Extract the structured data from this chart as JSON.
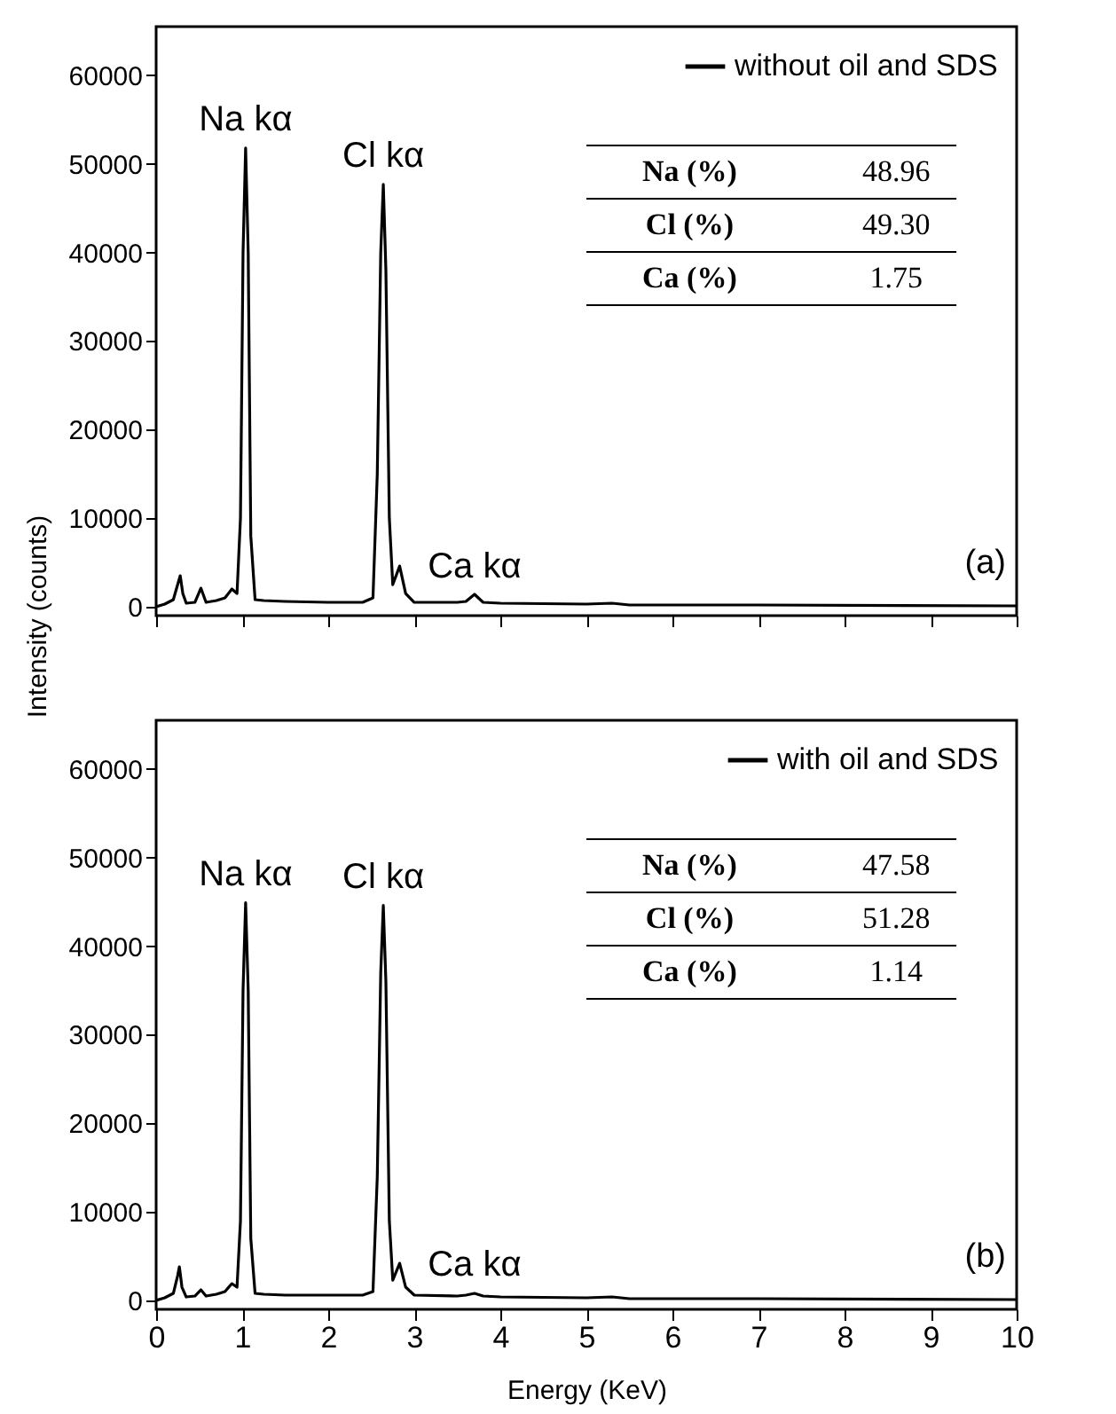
{
  "chart_data": [
    {
      "type": "line",
      "ylabel": "Intensity (counts)",
      "xlim": [
        0,
        10
      ],
      "ylim": [
        -1000,
        65500
      ],
      "xticks": [
        0,
        1,
        2,
        3,
        4,
        5,
        6,
        7,
        8,
        9,
        10
      ],
      "yticks": [
        0,
        10000,
        20000,
        30000,
        40000,
        50000,
        60000
      ],
      "grid": false,
      "legend": "top right",
      "tick_labels": "y",
      "x": [
        0,
        0.1,
        0.2,
        0.25,
        0.28,
        0.31,
        0.35,
        0.45,
        0.52,
        0.58,
        0.7,
        0.8,
        0.88,
        0.94,
        0.98,
        1.01,
        1.04,
        1.07,
        1.1,
        1.15,
        1.25,
        1.5,
        2.0,
        2.4,
        2.52,
        2.57,
        2.61,
        2.64,
        2.67,
        2.71,
        2.75,
        2.83,
        2.9,
        3.0,
        3.5,
        3.6,
        3.7,
        3.8,
        4.0,
        5.0,
        5.3,
        5.5,
        7.0,
        10.0
      ],
      "series": [
        {
          "name": "without oil and SDS",
          "color": "#000000",
          "values": [
            0,
            300,
            800,
            2500,
            3500,
            1500,
            400,
            500,
            2100,
            500,
            700,
            1000,
            2000,
            1500,
            10000,
            40000,
            51800,
            40000,
            8000,
            800,
            700,
            600,
            500,
            500,
            1000,
            15000,
            40000,
            47700,
            38000,
            10000,
            2500,
            4600,
            1500,
            500,
            500,
            600,
            1400,
            500,
            400,
            300,
            400,
            200,
            200,
            100
          ]
        }
      ],
      "annotations": [
        "(a)",
        "Na (%)",
        "48.96",
        "Cl (%)",
        "49.30",
        "Ca (%)",
        "1.75",
        {
          "text": "Na kα",
          "x": 1.04,
          "y": 51800
        },
        {
          "text": "Cl kα",
          "x": 2.64,
          "y": 47700
        },
        {
          "text": "Ca kα",
          "x": 3.7,
          "y": 1350
        }
      ]
    },
    {
      "type": "line",
      "xlabel": "Energy (KeV)",
      "xlim": [
        0,
        10
      ],
      "ylim": [
        -1000,
        65500
      ],
      "xticks": [
        0,
        1,
        2,
        3,
        4,
        5,
        6,
        7,
        8,
        9,
        10
      ],
      "yticks": [
        0,
        10000,
        20000,
        30000,
        40000,
        50000,
        60000
      ],
      "grid": false,
      "legend": "top right",
      "x": [
        0,
        0.1,
        0.2,
        0.25,
        0.27,
        0.3,
        0.35,
        0.45,
        0.52,
        0.58,
        0.7,
        0.8,
        0.88,
        0.94,
        0.98,
        1.01,
        1.04,
        1.07,
        1.1,
        1.15,
        1.25,
        1.5,
        2.0,
        2.4,
        2.52,
        2.57,
        2.61,
        2.64,
        2.67,
        2.71,
        2.75,
        2.83,
        2.9,
        3.0,
        3.5,
        3.6,
        3.7,
        3.8,
        4.0,
        5.0,
        5.3,
        5.5,
        7.0,
        10.0
      ],
      "series": [
        {
          "name": "with oil and SDS",
          "color": "#000000",
          "values": [
            0,
            300,
            800,
            2800,
            3800,
            1500,
            400,
            500,
            1200,
            500,
            700,
            1000,
            1900,
            1500,
            9000,
            35000,
            44900,
            35000,
            7000,
            800,
            700,
            600,
            600,
            600,
            1000,
            14000,
            37000,
            44600,
            36000,
            9000,
            2300,
            4200,
            1500,
            600,
            500,
            600,
            800,
            500,
            400,
            300,
            400,
            200,
            200,
            100
          ]
        }
      ],
      "annotations": [
        "(b)",
        "Na (%)",
        "47.58",
        "Cl (%)",
        "51.28",
        "Ca (%)",
        "1.14",
        {
          "text": "Na kα",
          "x": 1.04,
          "y": 44900
        },
        {
          "text": "Cl kα",
          "x": 2.64,
          "y": 44600
        },
        {
          "text": "Ca kα",
          "x": 3.7,
          "y": 800
        }
      ]
    }
  ]
}
